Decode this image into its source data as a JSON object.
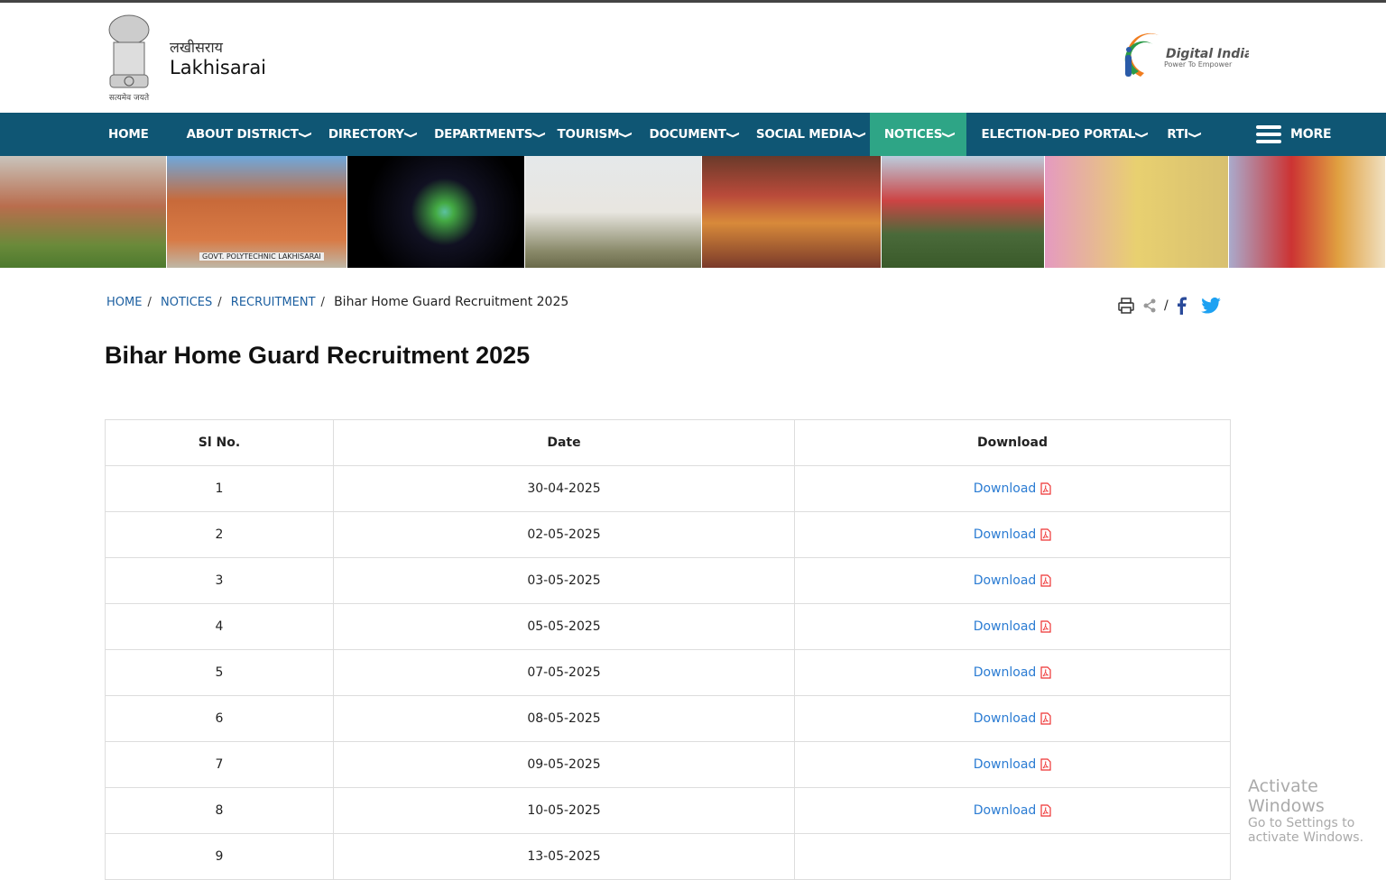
{
  "header": {
    "site_name_hindi": "लखीसराय",
    "site_name": "Lakhisarai",
    "emblem_motto": "सत्यमेव जयते",
    "digital_india": "Digital India",
    "digital_india_tagline": "Power To Empower"
  },
  "nav": {
    "items": [
      {
        "label": "HOME",
        "dropdown": false
      },
      {
        "label": "ABOUT DISTRICT",
        "dropdown": true
      },
      {
        "label": "DIRECTORY",
        "dropdown": true
      },
      {
        "label": "DEPARTMENTS",
        "dropdown": true
      },
      {
        "label": "TOURISM",
        "dropdown": true
      },
      {
        "label": "DOCUMENT",
        "dropdown": true
      },
      {
        "label": "SOCIAL MEDIA",
        "dropdown": true
      },
      {
        "label": "NOTICES",
        "dropdown": true,
        "active": true
      },
      {
        "label": "ELECTION-DEO PORTAL",
        "dropdown": true
      },
      {
        "label": "RTI",
        "dropdown": true
      }
    ],
    "more_label": "MORE",
    "color": "#0f5674",
    "active_color": "#2ea586"
  },
  "banner": {
    "caption": "GOVT. POLYTECHNIC LAKHISARAI"
  },
  "breadcrumb": [
    "HOME",
    "NOTICES",
    "RECRUITMENT",
    "Bihar Home Guard Recruitment 2025"
  ],
  "page_title": "Bihar Home Guard Recruitment 2025",
  "table": {
    "headers": [
      "Sl No.",
      "Date",
      "Download"
    ],
    "rows": [
      {
        "sl": "1",
        "date": "30-04-2025",
        "download": "Download"
      },
      {
        "sl": "2",
        "date": "02-05-2025",
        "download": "Download"
      },
      {
        "sl": "3",
        "date": "03-05-2025",
        "download": "Download"
      },
      {
        "sl": "4",
        "date": "05-05-2025",
        "download": "Download"
      },
      {
        "sl": "5",
        "date": "07-05-2025",
        "download": "Download"
      },
      {
        "sl": "6",
        "date": "08-05-2025",
        "download": "Download"
      },
      {
        "sl": "7",
        "date": "09-05-2025",
        "download": "Download"
      },
      {
        "sl": "8",
        "date": "10-05-2025",
        "download": "Download"
      },
      {
        "sl": "9",
        "date": "13-05-2025",
        "download": ""
      }
    ]
  },
  "watermark": {
    "line1": "Activate Windows",
    "line2": "Go to Settings to activate Windows."
  }
}
